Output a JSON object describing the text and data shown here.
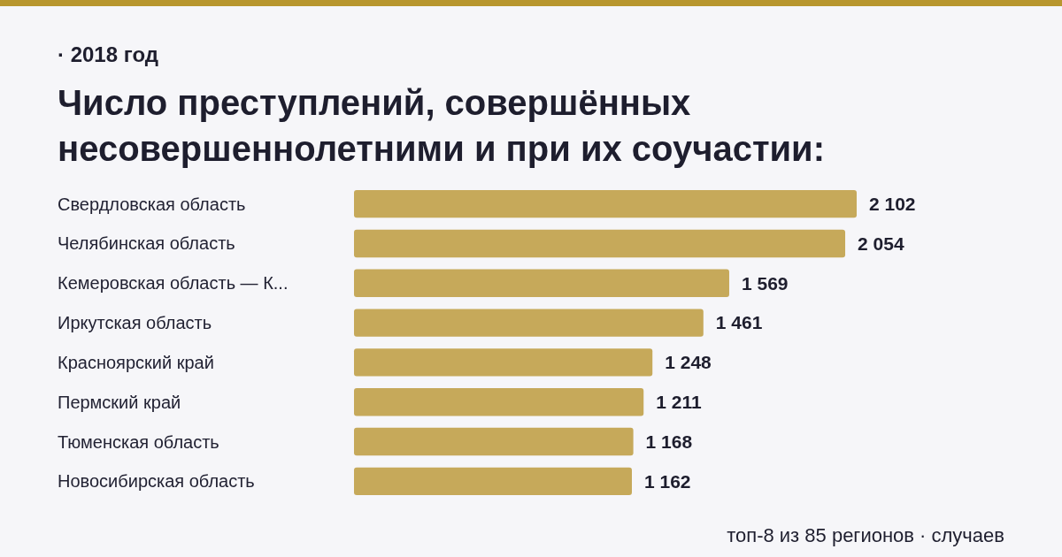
{
  "chart_data": {
    "type": "bar",
    "orientation": "horizontal",
    "subtitle": "· 2018 год",
    "title": "Число преступлений, совершённых несовершеннолетними и при их соучастии:",
    "categories": [
      "Свердловская область",
      "Челябинская область",
      "Кемеровская область — К...",
      "Иркутская область",
      "Красноярский край",
      "Пермский край",
      "Тюменская область",
      "Новосибирская область"
    ],
    "values": [
      2102,
      2054,
      1569,
      1461,
      1248,
      1211,
      1168,
      1162
    ],
    "value_labels": [
      "2 102",
      "2 054",
      "1 569",
      "1 461",
      "1 248",
      "1 211",
      "1 168",
      "1 162"
    ],
    "color": "#c6a95a",
    "xlim": [
      0,
      2102
    ],
    "annotations": [
      "топ-8 из 85 регионов · случаев"
    ]
  }
}
